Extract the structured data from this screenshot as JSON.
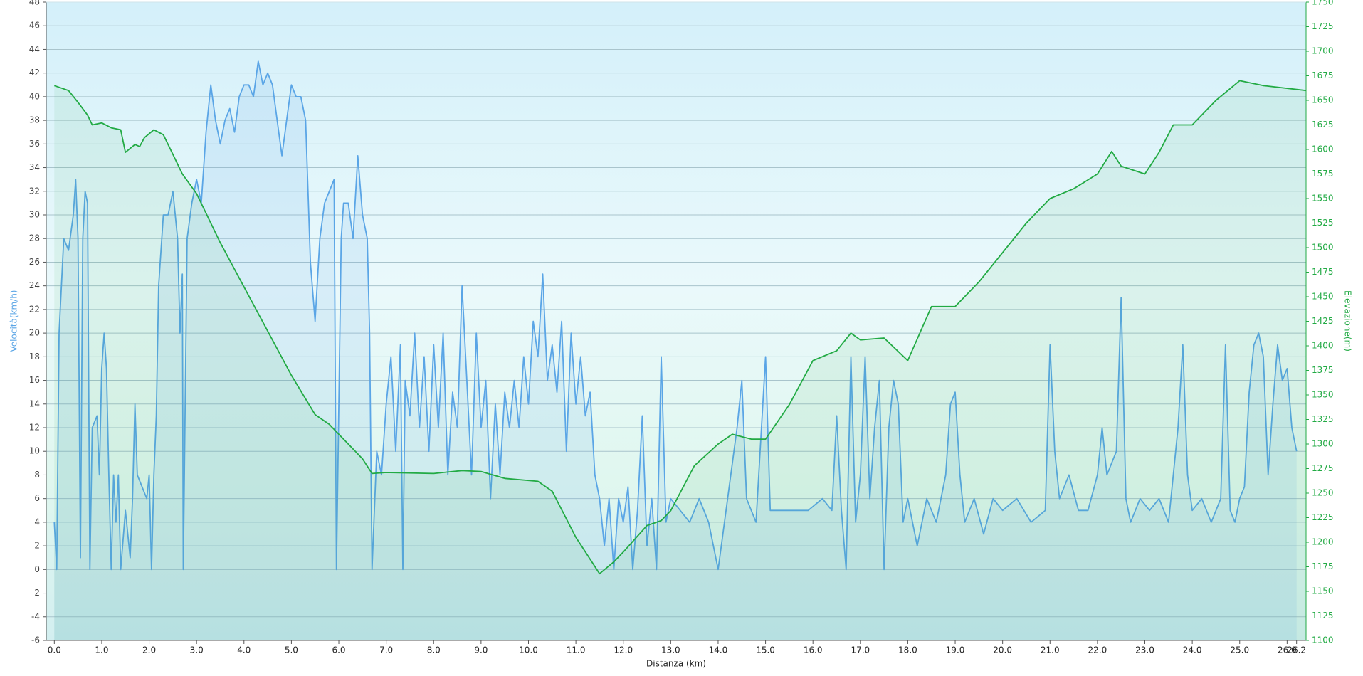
{
  "chart_data": {
    "type": "line",
    "x_label": "Distanza  (km)",
    "y_label": "Velocità(km/h)",
    "y2_label": "Elevazione(m)",
    "xlim": [
      -0.17,
      26.4
    ],
    "ylim": [
      -6,
      48
    ],
    "y2lim": [
      1100,
      1750
    ],
    "grid": true,
    "xticks": [
      {
        "value": 0,
        "label": "0.0"
      },
      {
        "value": 1,
        "label": "1.0"
      },
      {
        "value": 2,
        "label": "2.0"
      },
      {
        "value": 3,
        "label": "3.0"
      },
      {
        "value": 4,
        "label": "4.0"
      },
      {
        "value": 5,
        "label": "5.0"
      },
      {
        "value": 6,
        "label": "6.0"
      },
      {
        "value": 7,
        "label": "7.0"
      },
      {
        "value": 8,
        "label": "8.0"
      },
      {
        "value": 9,
        "label": "9.0"
      },
      {
        "value": 10,
        "label": "10.0"
      },
      {
        "value": 11,
        "label": "11.0"
      },
      {
        "value": 12,
        "label": "12.0"
      },
      {
        "value": 13,
        "label": "13.0"
      },
      {
        "value": 14,
        "label": "14.0"
      },
      {
        "value": 15,
        "label": "15.0"
      },
      {
        "value": 16,
        "label": "16.0"
      },
      {
        "value": 17,
        "label": "17.0"
      },
      {
        "value": 18,
        "label": "18.0"
      },
      {
        "value": 19,
        "label": "19.0"
      },
      {
        "value": 20,
        "label": "20.0"
      },
      {
        "value": 21,
        "label": "21.0"
      },
      {
        "value": 22,
        "label": "22.0"
      },
      {
        "value": 23,
        "label": "23.0"
      },
      {
        "value": 24,
        "label": "24.0"
      },
      {
        "value": 25,
        "label": "25.0"
      },
      {
        "value": 26,
        "label": "26.0"
      },
      26.2
    ],
    "yticks": [
      -6,
      -4,
      -2,
      0,
      2,
      4,
      6,
      8,
      10,
      12,
      14,
      16,
      18,
      20,
      22,
      24,
      26,
      28,
      30,
      32,
      34,
      36,
      38,
      40,
      42,
      44,
      46,
      48
    ],
    "y2ticks": [
      1100,
      1125,
      1150,
      1175,
      1200,
      1225,
      1250,
      1275,
      1300,
      1325,
      1350,
      1375,
      1400,
      1425,
      1450,
      1475,
      1500,
      1525,
      1550,
      1575,
      1600,
      1625,
      1650,
      1675,
      1700,
      1725,
      1750
    ],
    "series": [
      {
        "color": "#5aa5e6",
        "axis": "y",
        "x": [
          0.0,
          0.05,
          0.1,
          0.2,
          0.3,
          0.4,
          0.45,
          0.5,
          0.55,
          0.6,
          0.65,
          0.7,
          0.75,
          0.8,
          0.9,
          0.95,
          1.0,
          1.05,
          1.1,
          1.15,
          1.2,
          1.25,
          1.3,
          1.35,
          1.4,
          1.5,
          1.6,
          1.65,
          1.7,
          1.75,
          1.85,
          1.95,
          2.0,
          2.05,
          2.1,
          2.15,
          2.2,
          2.3,
          2.4,
          2.5,
          2.6,
          2.65,
          2.7,
          2.72,
          2.8,
          2.9,
          3.0,
          3.1,
          3.2,
          3.3,
          3.4,
          3.5,
          3.6,
          3.7,
          3.8,
          3.9,
          4.0,
          4.1,
          4.2,
          4.3,
          4.4,
          4.5,
          4.6,
          4.7,
          4.8,
          4.9,
          5.0,
          5.1,
          5.2,
          5.3,
          5.4,
          5.5,
          5.6,
          5.7,
          5.8,
          5.9,
          5.95,
          6.05,
          6.1,
          6.2,
          6.3,
          6.4,
          6.5,
          6.6,
          6.65,
          6.7,
          6.8,
          6.9,
          7.0,
          7.1,
          7.2,
          7.3,
          7.35,
          7.4,
          7.5,
          7.6,
          7.7,
          7.8,
          7.9,
          8.0,
          8.1,
          8.2,
          8.3,
          8.4,
          8.5,
          8.6,
          8.7,
          8.8,
          8.9,
          9.0,
          9.1,
          9.2,
          9.3,
          9.4,
          9.5,
          9.6,
          9.7,
          9.8,
          9.9,
          10.0,
          10.1,
          10.2,
          10.3,
          10.4,
          10.5,
          10.6,
          10.7,
          10.8,
          10.9,
          11.0,
          11.1,
          11.2,
          11.3,
          11.4,
          11.5,
          11.6,
          11.7,
          11.8,
          11.9,
          12.0,
          12.1,
          12.2,
          12.3,
          12.4,
          12.5,
          12.6,
          12.7,
          12.8,
          12.9,
          13.0,
          13.2,
          13.4,
          13.6,
          13.8,
          14.0,
          14.2,
          14.4,
          14.5,
          14.6,
          14.8,
          15.0,
          15.1,
          15.3,
          15.6,
          15.9,
          16.2,
          16.4,
          16.5,
          16.6,
          16.7,
          16.8,
          16.9,
          17.0,
          17.1,
          17.2,
          17.3,
          17.4,
          17.5,
          17.6,
          17.7,
          17.8,
          17.9,
          18.0,
          18.2,
          18.4,
          18.6,
          18.8,
          18.9,
          19.0,
          19.1,
          19.2,
          19.4,
          19.6,
          19.8,
          20.0,
          20.3,
          20.6,
          20.9,
          21.0,
          21.1,
          21.2,
          21.4,
          21.6,
          21.8,
          22.0,
          22.1,
          22.2,
          22.4,
          22.5,
          22.6,
          22.7,
          22.9,
          23.1,
          23.3,
          23.5,
          23.7,
          23.8,
          23.9,
          24.0,
          24.2,
          24.4,
          24.6,
          24.7,
          24.8,
          24.9,
          25.0,
          25.1,
          25.2,
          25.3,
          25.4,
          25.5,
          25.6,
          25.7,
          25.8,
          25.9,
          26.0,
          26.1,
          26.2
        ],
        "values": [
          4,
          0,
          20,
          28,
          27,
          30,
          33,
          28,
          1,
          28,
          32,
          31,
          0,
          12,
          13,
          8,
          17,
          20,
          17,
          8,
          0,
          8,
          4,
          8,
          0,
          5,
          1,
          6,
          14,
          8,
          7,
          6,
          8,
          0,
          8,
          13,
          24,
          30,
          30,
          32,
          28,
          20,
          25,
          0,
          28,
          31,
          33,
          31,
          37,
          41,
          38,
          36,
          38,
          39,
          37,
          40,
          41,
          41,
          40,
          43,
          41,
          42,
          41,
          38,
          35,
          38,
          41,
          40,
          40,
          38,
          26,
          21,
          28,
          31,
          32,
          33,
          0,
          28,
          31,
          31,
          28,
          35,
          30,
          28,
          20,
          0,
          10,
          8,
          14,
          18,
          10,
          19,
          0,
          16,
          13,
          20,
          12,
          18,
          10,
          19,
          12,
          20,
          8,
          15,
          12,
          24,
          16,
          8,
          20,
          12,
          16,
          6,
          14,
          8,
          15,
          12,
          16,
          12,
          18,
          14,
          21,
          18,
          25,
          16,
          19,
          15,
          21,
          10,
          20,
          14,
          18,
          13,
          15,
          8,
          6,
          2,
          6,
          0,
          6,
          4,
          7,
          0,
          5,
          13,
          2,
          6,
          0,
          18,
          4,
          6,
          5,
          4,
          6,
          4,
          0,
          6,
          12,
          16,
          6,
          4,
          18,
          5,
          5,
          5,
          5,
          6,
          5,
          13,
          5,
          0,
          18,
          4,
          8,
          18,
          6,
          12,
          16,
          0,
          12,
          16,
          14,
          4,
          6,
          2,
          6,
          4,
          8,
          14,
          15,
          8,
          4,
          6,
          3,
          6,
          5,
          6,
          4,
          5,
          19,
          10,
          6,
          8,
          5,
          5,
          8,
          12,
          8,
          10,
          23,
          6,
          4,
          6,
          5,
          6,
          4,
          12,
          19,
          8,
          5,
          6,
          4,
          6,
          19,
          5,
          4,
          6,
          7,
          15,
          19,
          20,
          18,
          8,
          14,
          19,
          16,
          17,
          12,
          10
        ]
      },
      {
        "color": "#22aa44",
        "axis": "y2",
        "x": [
          0.0,
          0.3,
          0.5,
          0.7,
          0.8,
          1.0,
          1.2,
          1.4,
          1.5,
          1.7,
          1.8,
          1.9,
          2.1,
          2.3,
          2.5,
          2.7,
          3.0,
          3.5,
          4.0,
          4.5,
          5.0,
          5.5,
          5.8,
          6.0,
          6.5,
          6.7,
          7.0,
          8.0,
          8.6,
          9.0,
          9.5,
          10.2,
          10.5,
          11.0,
          11.5,
          11.8,
          12.0,
          12.5,
          12.8,
          13.0,
          13.5,
          14.0,
          14.3,
          14.7,
          15.0,
          15.5,
          16.0,
          16.5,
          16.8,
          17.0,
          17.5,
          18.0,
          18.5,
          19.0,
          19.5,
          20.0,
          20.5,
          21.0,
          21.5,
          22.0,
          22.3,
          22.5,
          23.0,
          23.3,
          23.6,
          24.0,
          24.5,
          25.0,
          25.5,
          26.4
        ],
        "values": [
          1665,
          1660,
          1648,
          1635,
          1625,
          1627,
          1622,
          1620,
          1597,
          1605,
          1603,
          1612,
          1620,
          1615,
          1595,
          1575,
          1555,
          1505,
          1460,
          1415,
          1370,
          1330,
          1320,
          1310,
          1285,
          1270,
          1271,
          1270,
          1273,
          1272,
          1265,
          1262,
          1252,
          1205,
          1168,
          1180,
          1190,
          1217,
          1222,
          1232,
          1278,
          1300,
          1310,
          1305,
          1305,
          1340,
          1385,
          1395,
          1413,
          1406,
          1408,
          1385,
          1440,
          1440,
          1465,
          1495,
          1525,
          1550,
          1560,
          1575,
          1598,
          1583,
          1575,
          1597,
          1625,
          1625,
          1650,
          1670,
          1665,
          1660
        ]
      }
    ]
  }
}
